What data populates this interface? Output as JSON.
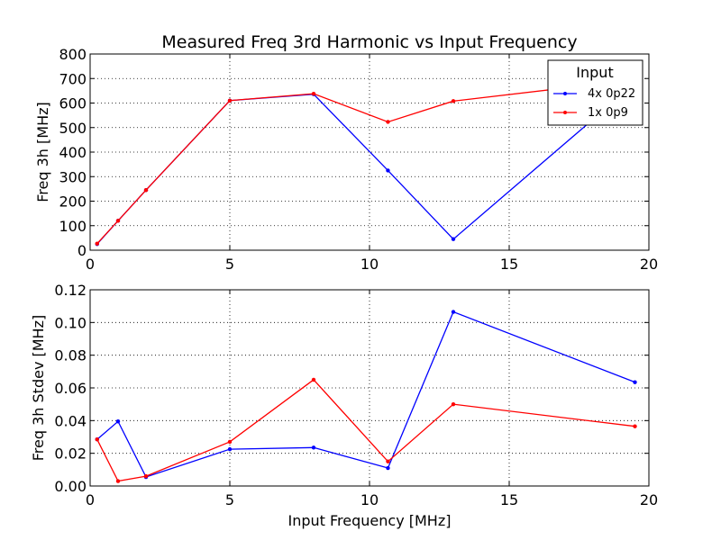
{
  "chart_data": [
    {
      "type": "line",
      "title": "Measured Freq 3rd Harmonic vs Input Frequency",
      "xlabel": "",
      "ylabel": "Freq 3h [MHz]",
      "xlim": [
        0,
        20
      ],
      "ylim": [
        0,
        800
      ],
      "xticks": [
        0,
        5,
        10,
        15,
        20
      ],
      "yticks": [
        0,
        100,
        200,
        300,
        400,
        500,
        600,
        700,
        800
      ],
      "xtick_labels": [
        "0",
        "5",
        "10",
        "15",
        "20"
      ],
      "ytick_labels": [
        "0",
        "100",
        "200",
        "300",
        "400",
        "500",
        "600",
        "700",
        "800"
      ],
      "grid": true,
      "legend": {
        "title": "Input",
        "placement": "top-right"
      },
      "series": [
        {
          "name": "4x 0p22",
          "color": "#0000ff",
          "x": [
            0.25,
            1,
            2,
            5,
            8,
            10.66,
            13,
            19.5
          ],
          "y": [
            25,
            120,
            245,
            610,
            636,
            325,
            45,
            680
          ]
        },
        {
          "name": "1x 0p9",
          "color": "#ff0000",
          "x": [
            0.25,
            1,
            2,
            5,
            8,
            10.66,
            13,
            19.5
          ],
          "y": [
            27,
            120,
            245,
            610,
            638,
            523,
            608,
            695
          ]
        }
      ]
    },
    {
      "type": "line",
      "title": "",
      "xlabel": "Input Frequency [MHz]",
      "ylabel": "Freq 3h Stdev [MHz]",
      "xlim": [
        0,
        20
      ],
      "ylim": [
        0,
        0.12
      ],
      "xticks": [
        0,
        5,
        10,
        15,
        20
      ],
      "yticks": [
        0,
        0.02,
        0.04,
        0.06,
        0.08,
        0.1,
        0.12
      ],
      "xtick_labels": [
        "0",
        "5",
        "10",
        "15",
        "20"
      ],
      "ytick_labels": [
        "0.00",
        "0.02",
        "0.04",
        "0.06",
        "0.08",
        "0.10",
        "0.12"
      ],
      "grid": true,
      "series": [
        {
          "name": "4x 0p22",
          "color": "#0000ff",
          "x": [
            0.25,
            1,
            2,
            5,
            8,
            10.66,
            13,
            19.5
          ],
          "y": [
            0.0285,
            0.0395,
            0.0055,
            0.0225,
            0.0235,
            0.011,
            0.1065,
            0.0635
          ]
        },
        {
          "name": "1x 0p9",
          "color": "#ff0000",
          "x": [
            0.25,
            1,
            2,
            5,
            8,
            10.66,
            13,
            19.5
          ],
          "y": [
            0.0285,
            0.003,
            0.006,
            0.027,
            0.065,
            0.015,
            0.05,
            0.0365
          ]
        }
      ]
    }
  ]
}
